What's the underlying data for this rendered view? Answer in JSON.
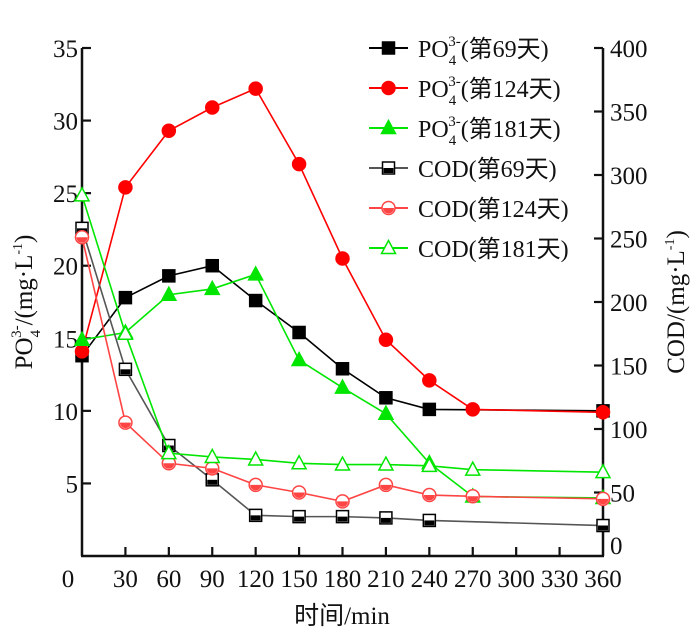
{
  "chart_data": {
    "type": "line",
    "title": "",
    "xlabel": "时间/min",
    "ylabel_left": {
      "main": "PO",
      "sub": "4",
      "sup": "3-",
      "rest": "/(mg·L",
      "rest_sup": "-1",
      "close": ")"
    },
    "ylabel_right": {
      "main": "COD/(mg·L",
      "sup": "-1",
      "close": ")"
    },
    "xlim": [
      0,
      360
    ],
    "ylim_left": [
      0,
      35
    ],
    "ylim_right": [
      0,
      400
    ],
    "x_ticks": [
      "0",
      "30",
      "60",
      "90",
      "120",
      "150",
      "180",
      "210",
      "240",
      "270",
      "300",
      "330",
      "360"
    ],
    "x_tick_values": [
      0,
      30,
      60,
      90,
      120,
      150,
      180,
      210,
      240,
      270,
      300,
      330,
      360
    ],
    "y_left_ticks": [
      "5",
      "10",
      "15",
      "20",
      "25",
      "30",
      "35"
    ],
    "y_left_tick_values": [
      5,
      10,
      15,
      20,
      25,
      30,
      35
    ],
    "y_right_ticks": [
      "0",
      "50",
      "100",
      "150",
      "200",
      "250",
      "300",
      "350",
      "400"
    ],
    "y_right_tick_values": [
      0,
      50,
      100,
      150,
      200,
      250,
      300,
      350,
      400
    ],
    "x_origin_label": "0",
    "grid": false,
    "legend_position": "top-right",
    "series": [
      {
        "name": "PO4 3-(第69天)",
        "legend": {
          "main": "PO",
          "sub": "4",
          "sup": "3-",
          "rest": "(第69天)"
        },
        "axis": "left",
        "color": "#000000",
        "marker": "square",
        "filled": true,
        "x": [
          0,
          30,
          60,
          90,
          120,
          150,
          180,
          210,
          240,
          360
        ],
        "values": [
          13.8,
          17.8,
          19.3,
          20.0,
          17.6,
          15.4,
          12.9,
          10.9,
          10.1,
          10.0
        ]
      },
      {
        "name": "PO4 3-(第124天)",
        "legend": {
          "main": "PO",
          "sub": "4",
          "sup": "3-",
          "rest": "(第124天)"
        },
        "axis": "left",
        "color": "#ff0000",
        "marker": "circle",
        "filled": true,
        "x": [
          0,
          30,
          60,
          90,
          120,
          150,
          180,
          210,
          240,
          270,
          360
        ],
        "values": [
          14.1,
          25.4,
          29.3,
          30.9,
          32.2,
          27.0,
          20.5,
          14.9,
          12.1,
          10.1,
          9.9
        ]
      },
      {
        "name": "PO4 3-(第181天)",
        "legend": {
          "main": "PO",
          "sub": "4",
          "sup": "3-",
          "rest": "(第181天)"
        },
        "axis": "left",
        "color": "#00e600",
        "marker": "triangle",
        "filled": true,
        "x": [
          0,
          30,
          60,
          90,
          120,
          150,
          180,
          210,
          240,
          270,
          360
        ],
        "values": [
          14.9,
          15.4,
          18.0,
          18.4,
          19.4,
          13.5,
          11.6,
          9.8,
          6.4,
          4.1,
          4.0
        ]
      },
      {
        "name": "COD(第69天)",
        "legend": {
          "main": "COD(第69天)"
        },
        "axis": "right",
        "color": "#555555",
        "marker": "square",
        "filled": false,
        "x": [
          0,
          30,
          60,
          90,
          120,
          150,
          180,
          210,
          240,
          360
        ],
        "values": [
          258,
          147,
          87,
          60,
          32,
          31,
          31,
          30,
          28,
          24
        ]
      },
      {
        "name": "COD(第124天)",
        "legend": {
          "main": "COD(第124天)"
        },
        "axis": "right",
        "color": "#ff4444",
        "marker": "circle",
        "filled": false,
        "x": [
          0,
          30,
          60,
          90,
          120,
          150,
          180,
          210,
          240,
          270,
          360
        ],
        "values": [
          251,
          105,
          73,
          69,
          56,
          50,
          43,
          56,
          48,
          47,
          45
        ]
      },
      {
        "name": "COD(第181天)",
        "legend": {
          "main": "COD(第181天)"
        },
        "axis": "right",
        "color": "#00e600",
        "marker": "triangle",
        "filled": false,
        "x": [
          0,
          30,
          60,
          90,
          120,
          150,
          180,
          210,
          240,
          270,
          360
        ],
        "values": [
          284,
          175,
          81,
          78,
          76,
          73,
          72,
          72,
          71,
          68,
          66
        ]
      }
    ]
  }
}
